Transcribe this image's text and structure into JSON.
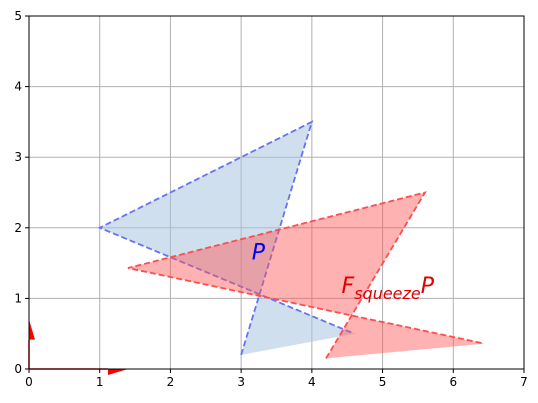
{
  "chart_data": {
    "type": "area",
    "xlim": [
      0,
      7
    ],
    "ylim": [
      0,
      5
    ],
    "grid": true,
    "x_ticks": [
      "0",
      "1",
      "2",
      "3",
      "4",
      "5",
      "6",
      "7"
    ],
    "y_ticks": [
      "0",
      "1",
      "2",
      "3",
      "4",
      "5"
    ],
    "series": [
      {
        "name": "P",
        "fill": "#a9c5df",
        "fill_opacity": 0.55,
        "stroke": "#6673f2",
        "dashed": true,
        "points": [
          [
            3.0,
            0.2
          ],
          [
            4.0,
            3.5
          ],
          [
            1.0,
            2.0
          ],
          [
            4.6,
            0.5
          ]
        ],
        "closed_edges": false,
        "fill_polygon": [
          [
            3.0,
            0.2
          ],
          [
            4.0,
            3.5
          ],
          [
            1.0,
            2.0
          ],
          [
            4.6,
            0.5
          ]
        ]
      },
      {
        "name": "F_squeeze P",
        "fill": "#ff5555",
        "fill_opacity": 0.45,
        "stroke": "#ff4d4d",
        "dashed": true,
        "points": [
          [
            4.2,
            0.15
          ],
          [
            5.6,
            2.5
          ],
          [
            1.4,
            1.43
          ],
          [
            6.44,
            0.36
          ]
        ],
        "fill_polygon": [
          [
            4.2,
            0.15
          ],
          [
            5.6,
            2.5
          ],
          [
            1.4,
            1.43
          ],
          [
            6.44,
            0.36
          ]
        ]
      }
    ],
    "labels": [
      {
        "text": "P",
        "x": 3.15,
        "y": 1.55,
        "color": "#0000ff"
      },
      {
        "text_main": "F",
        "text_sub": "squeeze",
        "text_tail": "P",
        "x": 4.42,
        "y": 1.08,
        "color": "#e00000"
      }
    ],
    "arrows": [
      {
        "from": [
          0,
          0
        ],
        "to": [
          1.4,
          0.0
        ],
        "color": "#ff0000"
      },
      {
        "from": [
          0,
          0
        ],
        "to": [
          0.0,
          0.7
        ],
        "color": "#ff0000"
      }
    ]
  }
}
